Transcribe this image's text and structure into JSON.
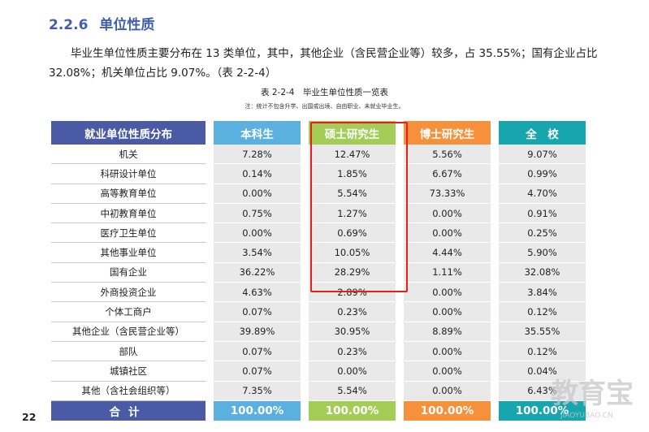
{
  "heading": {
    "number": "2.2.6",
    "title": "单位性质"
  },
  "paragraph": "毕业生单位性质主要分布在 13 类单位，其中，其他企业（含民营企业等）较多，占 35.55%；国有企业占比 32.08%；机关单位占比 9.07%。（表 2-2-4）",
  "table_caption": "表 2-2-4　毕业生单位性质一览表",
  "table_note": "注：统计不包含升学、出国或出境、自由职业、未就业毕业生。",
  "table": {
    "headers": [
      "就业单位性质分布",
      "本科生",
      "硕士研究生",
      "博士研究生",
      "全　校"
    ],
    "rows": [
      [
        "机关",
        "7.28%",
        "12.47%",
        "5.56%",
        "9.07%"
      ],
      [
        "科研设计单位",
        "0.14%",
        "1.85%",
        "6.67%",
        "0.99%"
      ],
      [
        "高等教育单位",
        "0.00%",
        "5.54%",
        "73.33%",
        "4.70%"
      ],
      [
        "中初教育单位",
        "0.75%",
        "1.27%",
        "0.00%",
        "0.91%"
      ],
      [
        "医疗卫生单位",
        "0.00%",
        "0.69%",
        "0.00%",
        "0.25%"
      ],
      [
        "其他事业单位",
        "3.54%",
        "10.05%",
        "4.44%",
        "5.90%"
      ],
      [
        "国有企业",
        "36.22%",
        "28.29%",
        "1.11%",
        "32.08%"
      ],
      [
        "外商投资企业",
        "4.63%",
        "2.89%",
        "0.00%",
        "3.84%"
      ],
      [
        "个体工商户",
        "0.07%",
        "0.23%",
        "0.00%",
        "0.12%"
      ],
      [
        "其他企业（含民营企业等）",
        "39.89%",
        "30.95%",
        "8.89%",
        "35.55%"
      ],
      [
        "部队",
        "0.07%",
        "0.23%",
        "0.00%",
        "0.12%"
      ],
      [
        "城镇社区",
        "0.07%",
        "0.00%",
        "0.00%",
        "0.04%"
      ],
      [
        "其他（含社会组织等）",
        "7.35%",
        "5.54%",
        "0.00%",
        "6.43%"
      ]
    ],
    "total": [
      "合计",
      "100.00%",
      "100.00%",
      "100.00%",
      "100.00%"
    ]
  },
  "page_number": "22",
  "watermark": {
    "text": "教育宝",
    "subtext": "JIAOYUBAO.CN"
  },
  "colors": {
    "heading": "#3f5fae",
    "col_category": "#4a5aa5",
    "col_undergrad": "#5ab0de",
    "col_master": "#a3cd57",
    "col_phd": "#f6903a",
    "col_all": "#17a5ae",
    "highlight_box": "#e3211c"
  }
}
